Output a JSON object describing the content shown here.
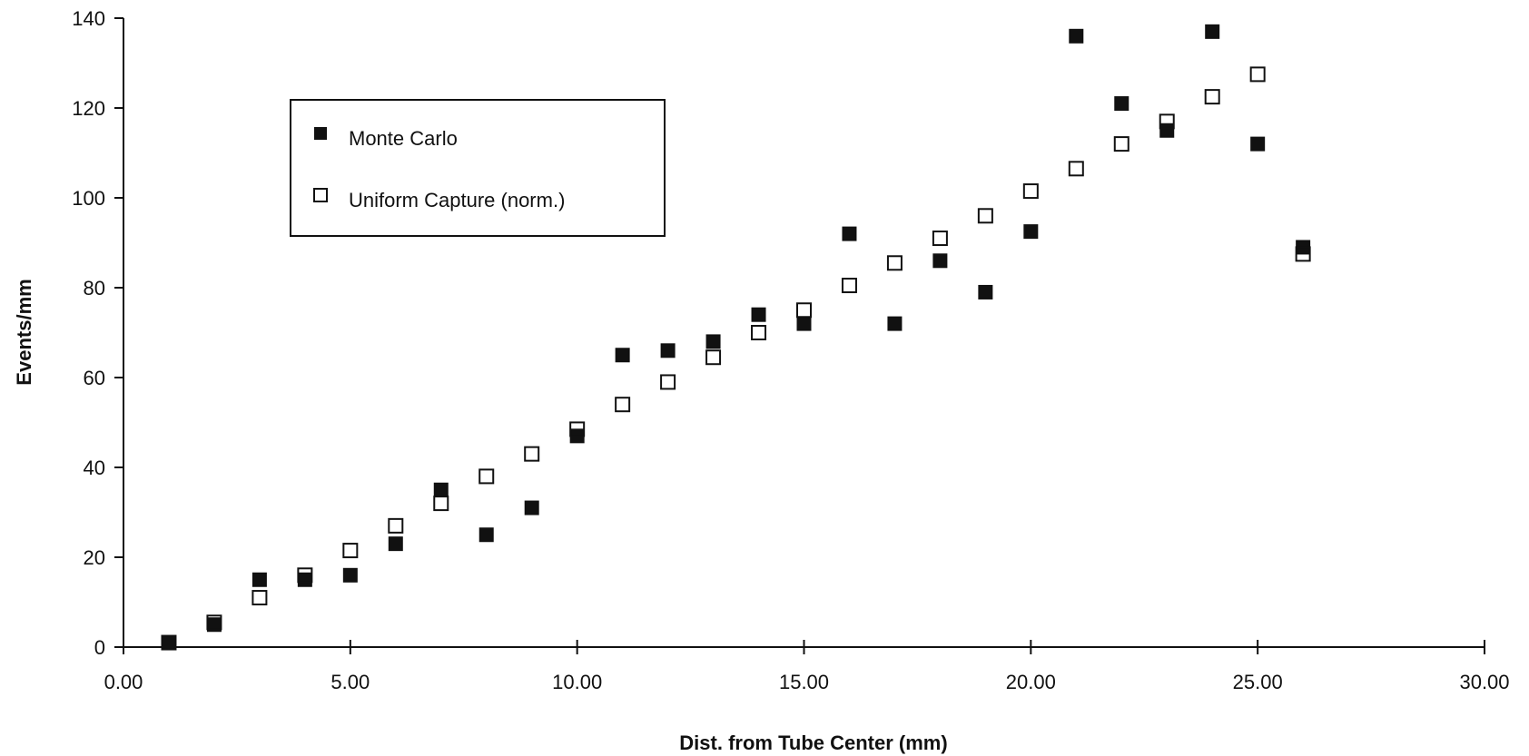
{
  "chart_data": {
    "type": "scatter",
    "title": "",
    "xlabel": "Dist. from Tube Center (mm)",
    "ylabel": "Events/mm",
    "xlim": [
      0,
      30
    ],
    "ylim": [
      0,
      140
    ],
    "x_ticks": [
      "0.00",
      "5.00",
      "10.00",
      "15.00",
      "20.00",
      "25.00",
      "30.00"
    ],
    "y_ticks": [
      "0",
      "20",
      "40",
      "60",
      "80",
      "100",
      "120",
      "140"
    ],
    "grid": false,
    "legend_position": "top-left",
    "series": [
      {
        "name": "Monte Carlo",
        "marker": "filled-square",
        "color": "#111111",
        "points": [
          [
            1,
            1
          ],
          [
            2,
            5
          ],
          [
            3,
            15
          ],
          [
            4,
            15
          ],
          [
            5,
            16
          ],
          [
            6,
            23
          ],
          [
            7,
            35
          ],
          [
            8,
            25
          ],
          [
            9,
            31
          ],
          [
            10,
            47
          ],
          [
            11,
            65
          ],
          [
            12,
            66
          ],
          [
            13,
            68
          ],
          [
            14,
            74
          ],
          [
            15,
            72
          ],
          [
            16,
            92
          ],
          [
            17,
            72
          ],
          [
            18,
            86
          ],
          [
            19,
            79
          ],
          [
            20,
            92.5
          ],
          [
            21,
            136
          ],
          [
            22,
            121
          ],
          [
            23,
            115
          ],
          [
            24,
            137
          ],
          [
            25,
            112
          ],
          [
            26,
            89
          ]
        ]
      },
      {
        "name": "Uniform Capture (norm.)",
        "marker": "open-square",
        "color": "#111111",
        "points": [
          [
            1,
            1
          ],
          [
            2,
            5.5
          ],
          [
            3,
            11
          ],
          [
            4,
            16
          ],
          [
            5,
            21.5
          ],
          [
            6,
            27
          ],
          [
            7,
            32
          ],
          [
            8,
            38
          ],
          [
            9,
            43
          ],
          [
            10,
            48.5
          ],
          [
            11,
            54
          ],
          [
            12,
            59
          ],
          [
            13,
            64.5
          ],
          [
            14,
            70
          ],
          [
            15,
            75
          ],
          [
            16,
            80.5
          ],
          [
            17,
            85.5
          ],
          [
            18,
            91
          ],
          [
            19,
            96
          ],
          [
            20,
            101.5
          ],
          [
            21,
            106.5
          ],
          [
            22,
            112
          ],
          [
            23,
            117
          ],
          [
            24,
            122.5
          ],
          [
            25,
            127.5
          ],
          [
            26,
            87.5
          ]
        ]
      }
    ]
  }
}
